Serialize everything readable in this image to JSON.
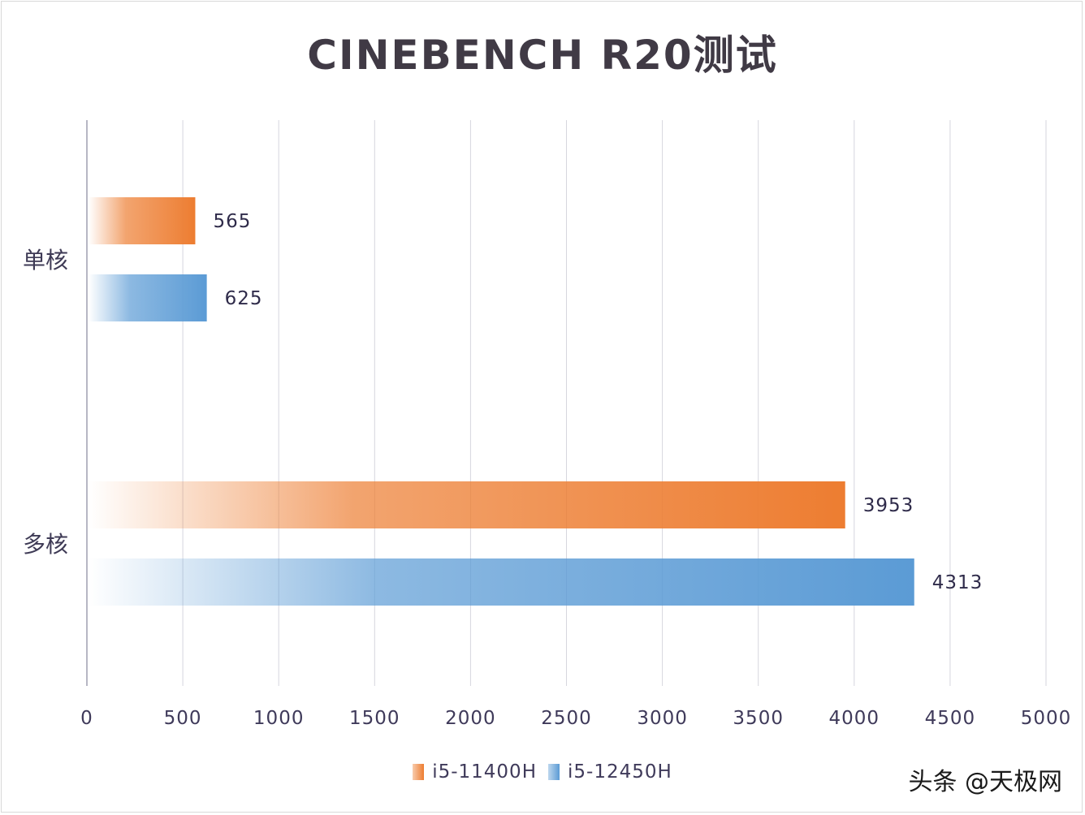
{
  "chart_data": {
    "type": "bar",
    "orientation": "horizontal",
    "title": "CINEBENCH R20测试",
    "categories": [
      "单核",
      "多核"
    ],
    "series": [
      {
        "name": "i5-11400H",
        "values": [
          565,
          3953
        ],
        "color": "#ed7d31"
      },
      {
        "name": "i5-12450H",
        "values": [
          625,
          4313
        ],
        "color": "#5b9bd5"
      }
    ],
    "xlim": [
      0,
      5000
    ],
    "x_ticks": [
      0,
      500,
      1000,
      1500,
      2000,
      2500,
      3000,
      3500,
      4000,
      4500,
      5000
    ],
    "grid": true,
    "legend_position": "bottom",
    "data_labels": true
  },
  "watermark": "头条 @天极网"
}
